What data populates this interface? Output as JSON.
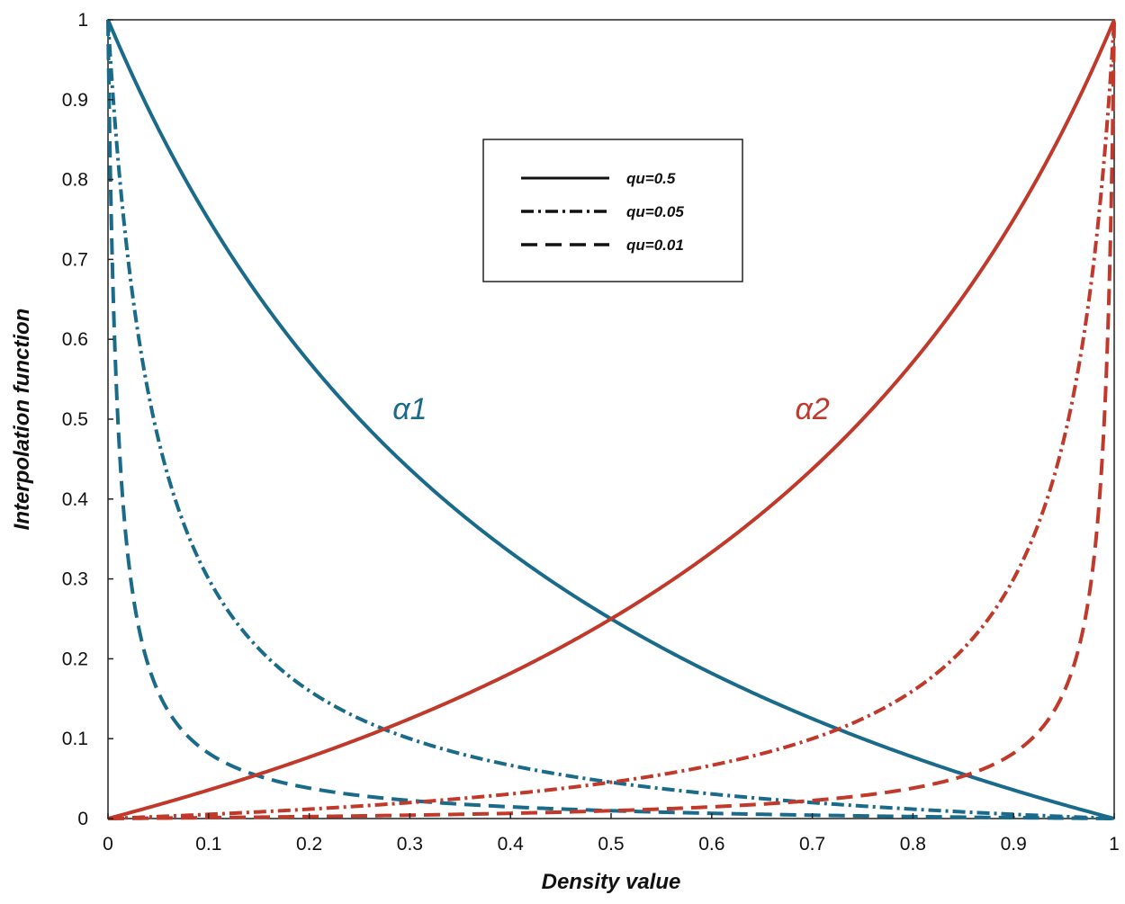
{
  "chart_data": {
    "type": "line",
    "title": "",
    "xlabel": "Density value",
    "ylabel": "Interpolation function",
    "xlim": [
      0,
      1
    ],
    "ylim": [
      0,
      1
    ],
    "xticks": [
      "0",
      "0.1",
      "0.2",
      "0.3",
      "0.4",
      "0.5",
      "0.6",
      "0.7",
      "0.8",
      "0.9",
      "1"
    ],
    "yticks": [
      "0",
      "0.1",
      "0.2",
      "0.3",
      "0.4",
      "0.5",
      "0.6",
      "0.7",
      "0.8",
      "0.9",
      "1"
    ],
    "grid": false,
    "legend": {
      "position": "top-center",
      "entries": [
        {
          "label": "qu=0.5",
          "style": "solid"
        },
        {
          "label": "qu=0.05",
          "style": "dash-dot"
        },
        {
          "label": "qu=0.01",
          "style": "dashed"
        }
      ]
    },
    "annotations": [
      {
        "text": "α1",
        "x": 0.3,
        "y": 0.5,
        "color": "#1a6a8a"
      },
      {
        "text": "α2",
        "x": 0.7,
        "y": 0.5,
        "color": "#c0392b"
      }
    ],
    "colors": {
      "alpha1": "#1a6a8a",
      "alpha2": "#c0392b"
    },
    "series": [
      {
        "name": "α1 qu=0.5",
        "family": "alpha1",
        "qu": 0.5,
        "style": "solid",
        "x": [
          0,
          0.1,
          0.2,
          0.3,
          0.4,
          0.5,
          0.6,
          0.7,
          0.8,
          0.9,
          1
        ],
        "y": [
          1,
          0.75,
          0.571,
          0.438,
          0.333,
          0.25,
          0.182,
          0.125,
          0.077,
          0.036,
          0
        ]
      },
      {
        "name": "α1 qu=0.05",
        "family": "alpha1",
        "qu": 0.05,
        "style": "dash-dot",
        "x": [
          0,
          0.1,
          0.2,
          0.3,
          0.4,
          0.5,
          0.6,
          0.7,
          0.8,
          0.9,
          1
        ],
        "y": [
          1,
          0.29,
          0.158,
          0.104,
          0.073,
          0.048,
          0.032,
          0.02,
          0.012,
          0.005,
          0
        ]
      },
      {
        "name": "α1 qu=0.01",
        "family": "alpha1",
        "qu": 0.01,
        "style": "dashed",
        "x": [
          0,
          0.1,
          0.2,
          0.3,
          0.4,
          0.5,
          0.6,
          0.7,
          0.8,
          0.9,
          1
        ],
        "y": [
          1,
          0.083,
          0.04,
          0.023,
          0.015,
          0.01,
          0.007,
          0.004,
          0.002,
          0.001,
          0
        ]
      },
      {
        "name": "α2 qu=0.5",
        "family": "alpha2",
        "qu": 0.5,
        "style": "solid",
        "x": [
          0,
          0.1,
          0.2,
          0.3,
          0.4,
          0.5,
          0.6,
          0.7,
          0.8,
          0.9,
          1
        ],
        "y": [
          0,
          0.036,
          0.077,
          0.125,
          0.182,
          0.25,
          0.333,
          0.438,
          0.571,
          0.75,
          1
        ]
      },
      {
        "name": "α2 qu=0.05",
        "family": "alpha2",
        "qu": 0.05,
        "style": "dash-dot",
        "x": [
          0,
          0.1,
          0.2,
          0.3,
          0.4,
          0.5,
          0.6,
          0.7,
          0.8,
          0.9,
          1
        ],
        "y": [
          0,
          0.005,
          0.012,
          0.02,
          0.032,
          0.048,
          0.073,
          0.104,
          0.158,
          0.29,
          1
        ]
      },
      {
        "name": "α2 qu=0.01",
        "family": "alpha2",
        "qu": 0.01,
        "style": "dashed",
        "x": [
          0,
          0.1,
          0.2,
          0.3,
          0.4,
          0.5,
          0.6,
          0.7,
          0.8,
          0.9,
          1
        ],
        "y": [
          0,
          0.001,
          0.002,
          0.004,
          0.007,
          0.01,
          0.015,
          0.023,
          0.04,
          0.083,
          1
        ]
      }
    ]
  }
}
